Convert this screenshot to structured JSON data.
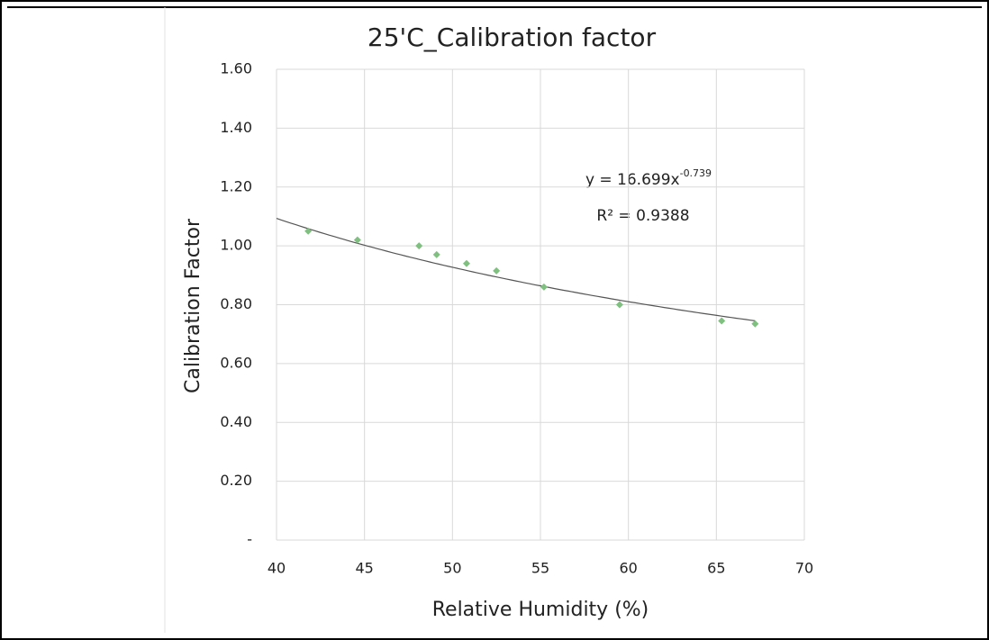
{
  "chart_data": {
    "type": "scatter",
    "title": "25'C_Calibration factor",
    "x_label": "Relative Humidity (%)",
    "y_label": "Calibration Factor",
    "x": [
      41.8,
      44.6,
      48.1,
      49.1,
      50.8,
      52.5,
      55.2,
      59.5,
      65.3,
      67.2
    ],
    "values": [
      1.05,
      1.02,
      1.0,
      0.97,
      0.94,
      0.915,
      0.86,
      0.8,
      0.745,
      0.735
    ],
    "color": "#7fbf7f",
    "xlim": [
      40,
      70
    ],
    "ylim": [
      0,
      1.6
    ],
    "xticks": [
      40,
      45,
      50,
      55,
      60,
      65,
      70
    ],
    "yticks": [
      {
        "value": 0,
        "label": "-"
      },
      {
        "value": 0.2,
        "label": "0.20"
      },
      {
        "value": 0.4,
        "label": "0.40"
      },
      {
        "value": 0.6,
        "label": "0.60"
      },
      {
        "value": 0.8,
        "label": "0.80"
      },
      {
        "value": 1.0,
        "label": "1.00"
      },
      {
        "value": 1.2,
        "label": "1.20"
      },
      {
        "value": 1.4,
        "label": "1.40"
      },
      {
        "value": 1.6,
        "label": "1.60"
      }
    ],
    "grid": true,
    "trendline": {
      "type": "power",
      "coefficient": 16.699,
      "exponent": -0.739,
      "color": "#555555",
      "equation": "y = 16.699x",
      "equation_exponent": "-0.739",
      "r_squared_label": "R² = 0.9388"
    }
  }
}
